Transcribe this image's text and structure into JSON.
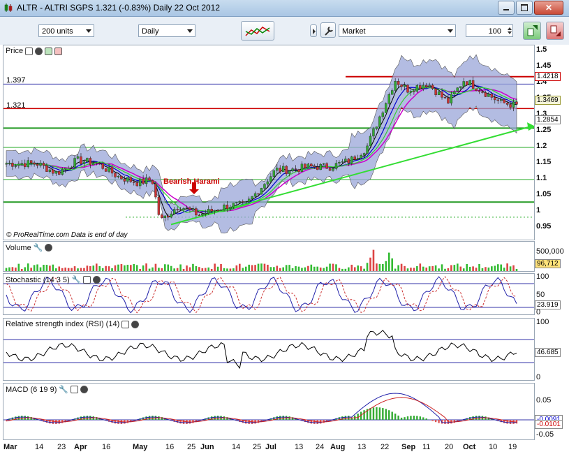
{
  "window": {
    "title": "ALTR - ALTRI SGPS   1.321 (-0.83%)   Daily  22 Oct 2012"
  },
  "toolbar": {
    "units": "200 units",
    "period": "Daily",
    "order_type": "Market",
    "quantity": "100"
  },
  "price_panel": {
    "label": "Price",
    "watermark": "© ProRealTime.com  Data is end of day",
    "annotation": "Bearish Harami",
    "left_level_1": "1.397",
    "left_level_2": "1.321",
    "axis_ticks": [
      "1.5",
      "1.45",
      "1.4",
      "1.35",
      "1.3",
      "1.25",
      "1.2",
      "1.15",
      "1.1",
      "1.05",
      "1",
      "0.95"
    ],
    "value_boxes": [
      "1.4218",
      "1.3469",
      "1.2854"
    ],
    "colors": {
      "upper_line": "#cc0000",
      "support": "#22aa22",
      "band_fill": "#9aa6d8"
    }
  },
  "volume_panel": {
    "label": "Volume",
    "axis_ticks": [
      "500,000"
    ],
    "value_box": "96,712"
  },
  "stochastic_panel": {
    "label": "Stochastic (14 3 5)",
    "axis_ticks": [
      "100",
      "50",
      "0"
    ],
    "value_box": "23.919"
  },
  "rsi_panel": {
    "label": "Relative strength index (RSI) (14)",
    "axis_ticks": [
      "100",
      "50",
      "0"
    ],
    "value_box": "46.685"
  },
  "macd_panel": {
    "label": "MACD (6 19 9)",
    "axis_ticks": [
      "0.05",
      "0",
      "-0.05"
    ],
    "value_box_1": "-0.0091",
    "value_box_2": "-0.0101"
  },
  "x_axis": [
    "Mar",
    "14",
    "23",
    "Apr",
    "16",
    "May",
    "16",
    "25",
    "Jun",
    "14",
    "25",
    "Jul",
    "13",
    "24",
    "Aug",
    "13",
    "22",
    "Sep",
    "11",
    "20",
    "Oct",
    "10",
    "19"
  ]
}
